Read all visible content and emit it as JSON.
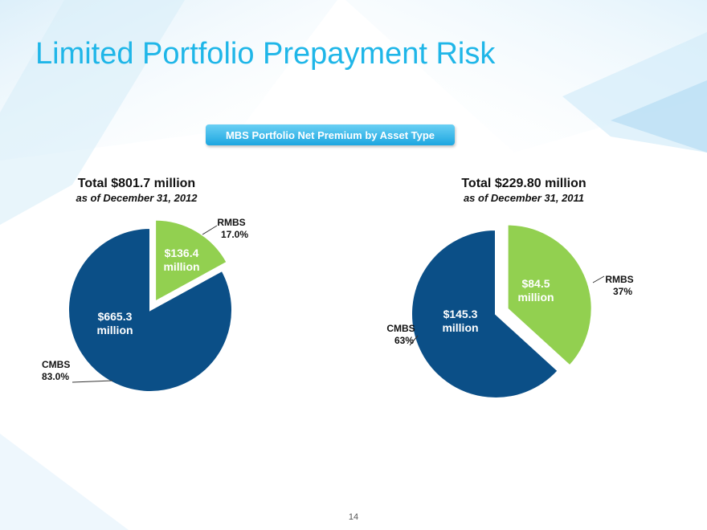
{
  "page": {
    "title": "Limited Portfolio Prepayment Risk",
    "subtitle_banner": "MBS Portfolio Net Premium by Asset Type",
    "page_number": "14"
  },
  "colors": {
    "cmbs": "#0b4f87",
    "rmbs": "#92d050",
    "title": "#1fb6e8",
    "banner": "#2cb0e6"
  },
  "chart_data": [
    {
      "type": "pie",
      "title": "Total $801.7 million",
      "subtitle": "as of December 31, 2012",
      "slices": [
        {
          "category": "RMBS",
          "value": 136.4,
          "value_label": [
            "$136.4",
            "million"
          ],
          "percent_label": "17.0%",
          "exploded": true
        },
        {
          "category": "CMBS",
          "value": 665.3,
          "value_label": [
            "$665.3",
            "million"
          ],
          "percent_label": "83.0%",
          "exploded": false
        }
      ]
    },
    {
      "type": "pie",
      "title": "Total $229.80 million",
      "subtitle": "as of December 31, 2011",
      "slices": [
        {
          "category": "RMBS",
          "value": 84.5,
          "value_label": [
            "$84.5",
            "million"
          ],
          "percent_label": "37%",
          "exploded": true
        },
        {
          "category": "CMBS",
          "value": 145.3,
          "value_label": [
            "$145.3",
            "million"
          ],
          "percent_label": "63%",
          "exploded": false
        }
      ]
    }
  ]
}
